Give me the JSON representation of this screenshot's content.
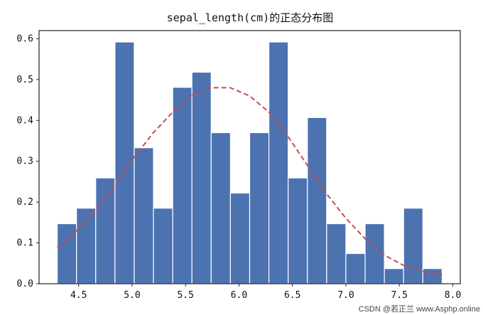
{
  "chart_data": {
    "type": "bar",
    "title": "sepal_length(cm)的正态分布图",
    "xlabel": "",
    "ylabel": "",
    "xlim": [
      4.13,
      8.07
    ],
    "ylim": [
      0,
      0.62
    ],
    "xticks": [
      "4.5",
      "5.0",
      "5.5",
      "6.0",
      "6.5",
      "7.0",
      "7.5",
      "8.0"
    ],
    "xtick_values": [
      4.5,
      5.0,
      5.5,
      6.0,
      6.5,
      7.0,
      7.5,
      8.0
    ],
    "yticks": [
      "0.0",
      "0.1",
      "0.2",
      "0.3",
      "0.4",
      "0.5",
      "0.6"
    ],
    "ytick_values": [
      0.0,
      0.1,
      0.2,
      0.3,
      0.4,
      0.5,
      0.6
    ],
    "bin_edges": [
      4.3,
      4.48,
      4.66,
      4.84,
      5.02,
      5.2,
      5.38,
      5.56,
      5.74,
      5.92,
      6.1,
      6.28,
      6.46,
      6.64,
      6.82,
      7.0,
      7.18,
      7.36,
      7.54,
      7.72,
      7.9
    ],
    "values": [
      0.147,
      0.185,
      0.259,
      0.592,
      0.333,
      0.185,
      0.481,
      0.518,
      0.37,
      0.222,
      0.37,
      0.592,
      0.259,
      0.407,
      0.147,
      0.074,
      0.147,
      0.037,
      0.185,
      0.037
    ],
    "bar_color": "#4C72B0",
    "curve": {
      "style": "dashed",
      "color": "#C44E52",
      "x": [
        4.3,
        4.48,
        4.66,
        4.84,
        5.02,
        5.2,
        5.38,
        5.56,
        5.74,
        5.92,
        6.1,
        6.28,
        6.46,
        6.64,
        6.82,
        7.0,
        7.18,
        7.36,
        7.54,
        7.72,
        7.9
      ],
      "y": [
        0.09,
        0.13,
        0.18,
        0.24,
        0.31,
        0.37,
        0.42,
        0.46,
        0.48,
        0.48,
        0.46,
        0.42,
        0.36,
        0.29,
        0.22,
        0.16,
        0.11,
        0.07,
        0.045,
        0.03,
        0.022
      ]
    }
  },
  "watermark": "CSDN @若正兰 www.Asphp.online"
}
